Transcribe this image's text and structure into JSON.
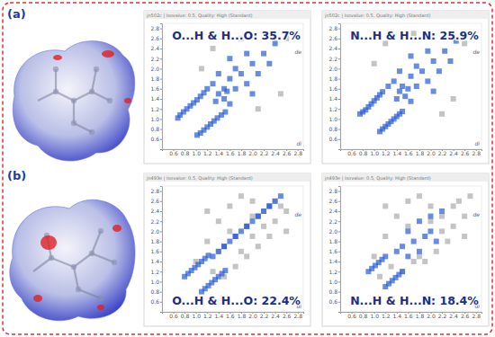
{
  "panel_labels": [
    "(a)",
    "(b)"
  ],
  "chart_data": [
    {
      "type": "scatter",
      "title": "O...H & H...O: 35.7%",
      "subtitle": "jn502c | Isovalue: 0.5, Quality: High (Standard)",
      "xlabel": "di",
      "ylabel": "de",
      "marker": "square",
      "xlim": [
        0.4,
        2.9
      ],
      "ylim": [
        0.4,
        2.9
      ],
      "xticks": [
        0.6,
        0.8,
        {
          "value": 1,
          "label": "1.0"
        },
        1.2,
        1.4,
        1.6,
        1.8,
        {
          "value": 2,
          "label": "2.0"
        },
        2.2,
        2.4,
        2.6,
        2.8
      ],
      "yticks": [
        0.6,
        0.8,
        {
          "value": 1,
          "label": "1.0"
        },
        1.2,
        1.4,
        1.6,
        1.8,
        {
          "value": 2,
          "label": "2.0"
        },
        2.2,
        2.4,
        2.6,
        2.8
      ],
      "series": [
        {
          "color": "#b0b0b0",
          "x": [
            1.3,
            2.5,
            1.1,
            2.1,
            2.6,
            1.8
          ],
          "values": [
            2.4,
            1.5,
            2.0,
            1.2,
            2.6,
            2.6
          ]
        },
        {
          "color": "#2a5bd7",
          "x": [
            0.68,
            0.72,
            0.78,
            0.84,
            0.9,
            0.96,
            1.02,
            1.08,
            1.14,
            1.02,
            1.08,
            1.14,
            1.2,
            1.26,
            1.32,
            1.38,
            1.45,
            1.52,
            1.2,
            1.3,
            1.4,
            1.5,
            1.6,
            1.5,
            1.6,
            1.7,
            1.8,
            1.9,
            2.0,
            2.1,
            1.7,
            2.2,
            2.3,
            1.4,
            1.9,
            2.4,
            1.6,
            2.0,
            1.35,
            1.55
          ],
          "values": [
            1.02,
            1.08,
            1.14,
            1.2,
            1.26,
            1.32,
            1.38,
            1.45,
            1.52,
            0.68,
            0.72,
            0.78,
            0.84,
            0.9,
            0.96,
            1.02,
            1.08,
            1.14,
            1.6,
            1.7,
            1.5,
            1.4,
            1.3,
            1.6,
            1.8,
            1.6,
            1.9,
            1.7,
            2.1,
            1.9,
            2.0,
            2.3,
            2.1,
            1.9,
            2.3,
            2.5,
            2.2,
            1.5,
            1.35,
            1.55
          ]
        }
      ]
    },
    {
      "type": "scatter",
      "title": "N...H & H...N: 25.9%",
      "subtitle": "jn502c | Isovalue: 0.5, Quality: High (Standard)",
      "xlabel": "di",
      "ylabel": "de",
      "marker": "square",
      "xlim": [
        0.4,
        2.9
      ],
      "ylim": [
        0.4,
        2.9
      ],
      "xticks": [
        0.6,
        0.8,
        {
          "value": 1,
          "label": "1.0"
        },
        1.2,
        1.4,
        1.6,
        1.8,
        {
          "value": 2,
          "label": "2.0"
        },
        2.2,
        2.4,
        2.6,
        2.8
      ],
      "yticks": [
        0.6,
        0.8,
        {
          "value": 1,
          "label": "1.0"
        },
        1.2,
        1.4,
        1.6,
        1.8,
        {
          "value": 2,
          "label": "2.0"
        },
        2.2,
        2.4,
        2.6,
        2.8
      ],
      "series": [
        {
          "color": "#b0b0b0",
          "x": [
            1.2,
            2.4,
            1.0,
            2.2,
            2.6,
            1.7
          ],
          "values": [
            2.5,
            1.4,
            2.1,
            1.1,
            2.5,
            2.7
          ]
        },
        {
          "color": "#2a5bd7",
          "x": [
            0.75,
            0.8,
            0.85,
            0.9,
            0.95,
            1.0,
            1.05,
            1.1,
            1.15,
            1.1,
            1.15,
            1.2,
            1.25,
            1.3,
            1.35,
            1.4,
            1.45,
            1.5,
            1.25,
            1.35,
            1.45,
            1.55,
            1.65,
            1.5,
            1.65,
            1.75,
            1.85,
            1.95,
            2.05,
            2.15,
            1.75,
            2.25,
            2.35,
            1.45,
            1.95,
            2.45,
            1.65,
            2.05,
            1.4,
            1.6
          ],
          "values": [
            1.1,
            1.14,
            1.18,
            1.24,
            1.3,
            1.36,
            1.42,
            1.48,
            1.54,
            0.75,
            0.8,
            0.85,
            0.9,
            0.95,
            1.0,
            1.05,
            1.1,
            1.15,
            1.65,
            1.75,
            1.55,
            1.45,
            1.35,
            1.65,
            1.85,
            1.65,
            1.95,
            1.75,
            2.15,
            1.95,
            2.05,
            2.35,
            2.15,
            1.95,
            2.35,
            2.55,
            2.25,
            1.55,
            1.4,
            1.6
          ]
        }
      ]
    },
    {
      "type": "scatter",
      "title": "O...H & H...O: 22.4%",
      "subtitle": "jn493e | Isovalue: 0.5, Quality: High (Standard)",
      "xlabel": "di",
      "ylabel": "de",
      "marker": "square",
      "xlim": [
        0.4,
        2.9
      ],
      "ylim": [
        0.4,
        2.9
      ],
      "xticks": [
        0.6,
        0.8,
        {
          "value": 1,
          "label": "1.0"
        },
        1.2,
        1.4,
        1.6,
        1.8,
        {
          "value": 2,
          "label": "2.0"
        },
        2.2,
        2.4,
        2.6,
        2.8
      ],
      "yticks": [
        0.6,
        0.8,
        {
          "value": 1,
          "label": "1.0"
        },
        1.2,
        1.4,
        1.6,
        1.8,
        {
          "value": 2,
          "label": "2.0"
        },
        2.2,
        2.4,
        2.6,
        2.8
      ],
      "series": [
        {
          "color": "#b0b0b0",
          "x": [
            1.0,
            1.2,
            1.4,
            1.6,
            1.8,
            2.0,
            2.2,
            2.4,
            2.6,
            1.3,
            1.5,
            1.7,
            1.9,
            2.1,
            2.3,
            2.5,
            1.6,
            2.0,
            2.4,
            1.2,
            2.2,
            2.6,
            1.8,
            1.4,
            2.0
          ],
          "values": [
            1.4,
            1.8,
            2.2,
            2.5,
            2.7,
            2.6,
            2.4,
            2.2,
            2.0,
            1.2,
            1.1,
            1.3,
            1.5,
            1.7,
            1.9,
            2.5,
            2.0,
            2.3,
            2.6,
            2.4,
            2.1,
            2.4,
            1.6,
            1.6,
            1.9
          ]
        },
        {
          "color": "#2a5bd7",
          "x": [
            0.8,
            0.86,
            0.92,
            0.98,
            1.04,
            1.1,
            1.16,
            1.22,
            1.1,
            1.16,
            1.22,
            1.28,
            1.34,
            1.4,
            1.46,
            1.52,
            1.3,
            1.4,
            1.5,
            1.6,
            1.7,
            1.8,
            1.9,
            2.0,
            2.1,
            2.2,
            2.3,
            2.4,
            1.5,
            1.7,
            1.9,
            2.1,
            2.3,
            2.5
          ],
          "values": [
            1.1,
            1.16,
            1.22,
            1.28,
            1.34,
            1.4,
            1.46,
            1.52,
            0.8,
            0.86,
            0.92,
            0.98,
            1.04,
            1.1,
            1.16,
            1.22,
            1.5,
            1.6,
            1.7,
            1.8,
            1.9,
            2.0,
            2.1,
            2.2,
            2.3,
            2.4,
            2.5,
            2.6,
            1.7,
            1.9,
            2.1,
            2.3,
            2.5,
            2.7
          ]
        }
      ]
    },
    {
      "type": "scatter",
      "title": "N...H & H...N: 18.4%",
      "subtitle": "jn493e | Isovalue: 0.5, Quality: High (Standard)",
      "xlabel": "di",
      "ylabel": "de",
      "marker": "square",
      "xlim": [
        0.4,
        2.9
      ],
      "ylim": [
        0.4,
        2.9
      ],
      "xticks": [
        0.6,
        0.8,
        {
          "value": 1,
          "label": "1.0"
        },
        1.2,
        1.4,
        1.6,
        1.8,
        {
          "value": 2,
          "label": "2.0"
        },
        2.2,
        2.4,
        2.6,
        2.8
      ],
      "yticks": [
        0.6,
        0.8,
        {
          "value": 1,
          "label": "1.0"
        },
        1.2,
        1.4,
        1.6,
        1.8,
        {
          "value": 2,
          "label": "2.0"
        },
        2.2,
        2.4,
        2.6,
        2.8
      ],
      "series": [
        {
          "color": "#b0b0b0",
          "x": [
            1.0,
            1.2,
            1.4,
            1.6,
            1.8,
            2.0,
            2.2,
            2.4,
            2.6,
            1.3,
            1.5,
            1.7,
            1.9,
            2.1,
            2.3,
            2.5,
            1.6,
            2.0,
            2.4,
            1.2,
            2.2,
            2.6,
            1.8,
            1.1,
            2.7
          ],
          "values": [
            1.5,
            1.9,
            2.3,
            2.6,
            2.7,
            2.5,
            2.3,
            2.1,
            1.9,
            1.3,
            1.2,
            1.4,
            1.4,
            1.6,
            1.8,
            2.6,
            2.1,
            2.2,
            2.5,
            2.5,
            2.0,
            2.3,
            1.5,
            1.1,
            2.7
          ]
        },
        {
          "color": "#2a5bd7",
          "x": [
            0.9,
            0.96,
            1.02,
            1.08,
            1.14,
            1.2,
            1.2,
            1.26,
            1.32,
            1.38,
            1.44,
            1.5,
            1.4,
            1.5,
            1.6,
            1.7,
            1.8,
            1.9,
            2.0,
            2.1,
            1.6,
            1.8,
            2.0,
            2.2
          ],
          "values": [
            1.2,
            1.26,
            1.32,
            1.38,
            1.44,
            1.5,
            0.9,
            0.96,
            1.02,
            1.08,
            1.14,
            1.2,
            1.6,
            1.7,
            1.5,
            1.8,
            1.6,
            1.9,
            2.0,
            1.8,
            2.0,
            2.2,
            2.3,
            2.4
          ]
        }
      ]
    }
  ]
}
